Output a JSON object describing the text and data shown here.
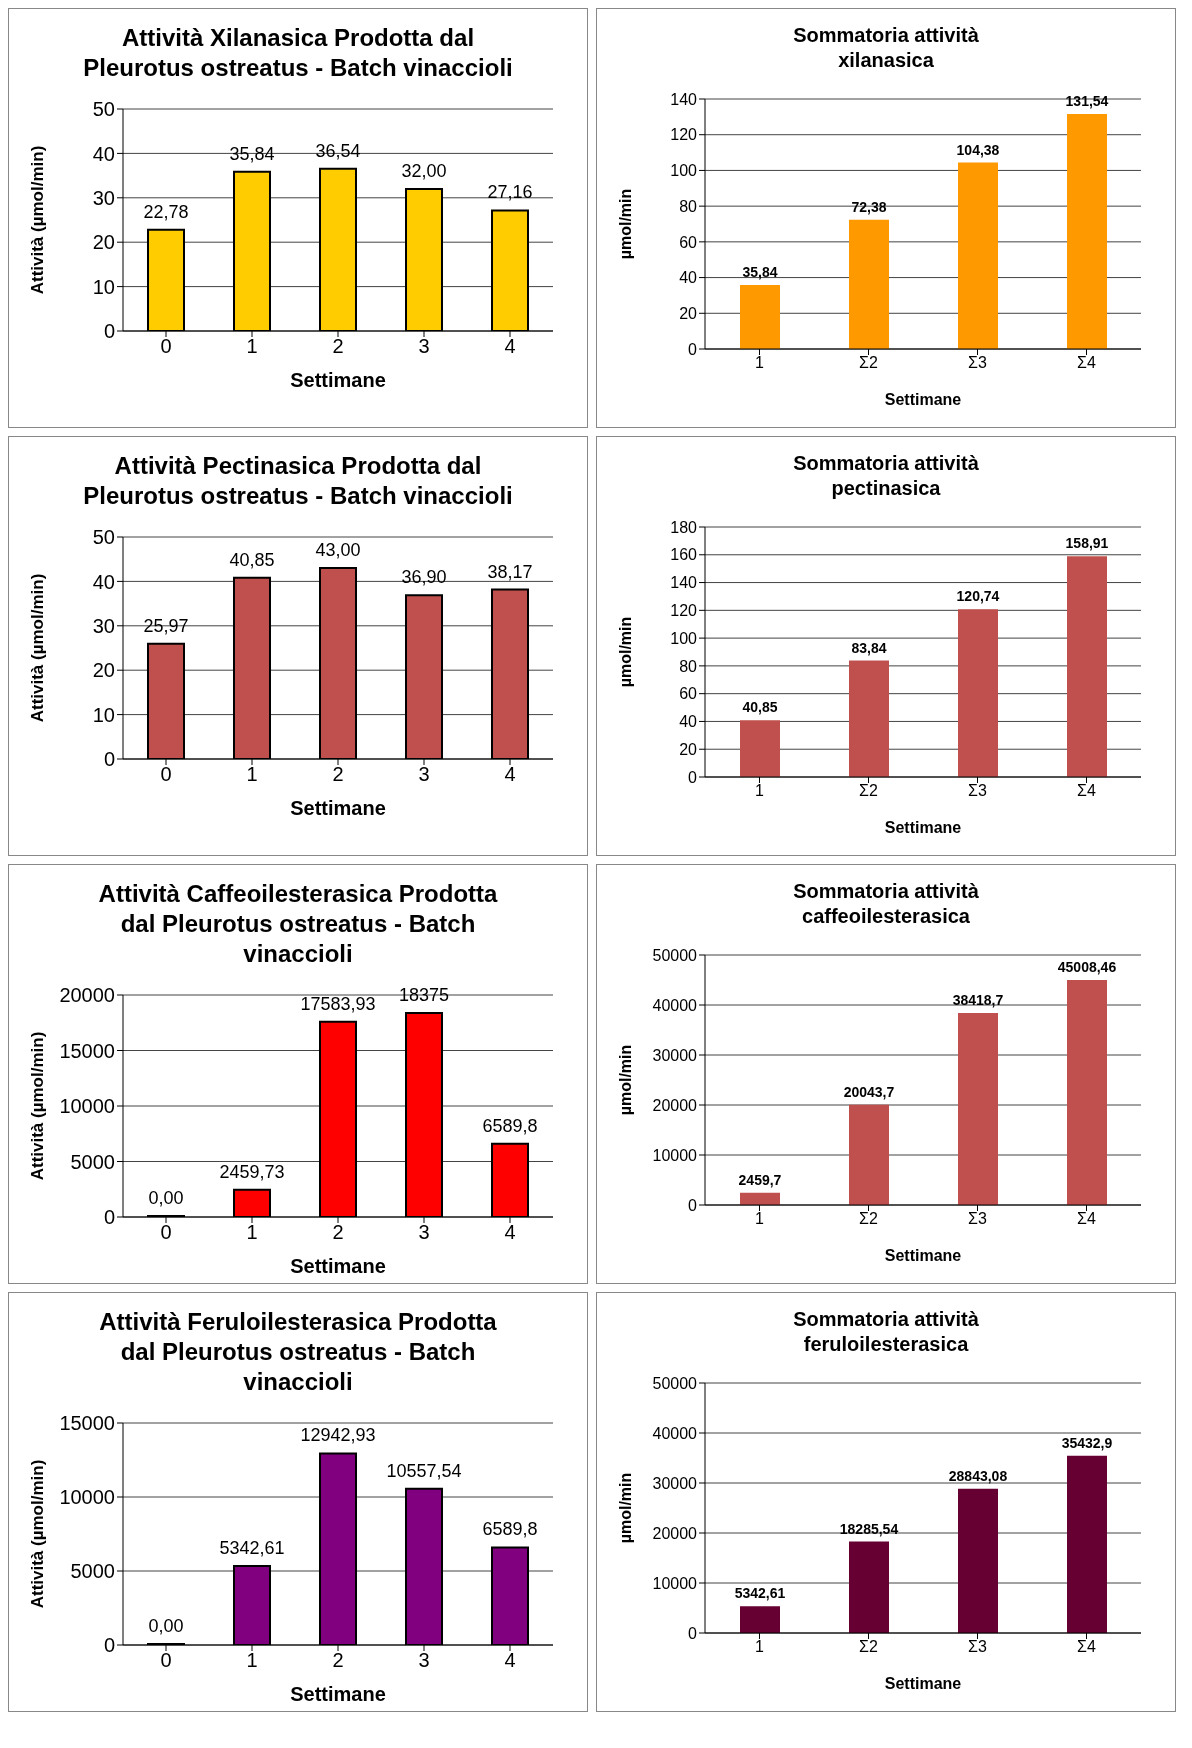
{
  "chart_data": [
    {
      "type": "bar",
      "title": "Attività Xilanasica Prodotta dal Pleurotus ostreatus - Batch vinaccioli",
      "xlabel": "Settimane",
      "ylabel": "Attività (µmol/min)",
      "categories": [
        "0",
        "1",
        "2",
        "3",
        "4"
      ],
      "values": [
        22.78,
        35.84,
        36.54,
        32.0,
        27.16
      ],
      "value_labels": [
        "22,78",
        "35,84",
        "36,54",
        "32,00",
        "27,16"
      ],
      "color": "#ffcc00",
      "ylim": [
        0,
        50
      ],
      "yticks": [
        0,
        10,
        20,
        30,
        40,
        50
      ],
      "grid": "y",
      "legend": false
    },
    {
      "type": "bar",
      "title": "Sommatoria  attività xilanasica",
      "xlabel": "Settimane",
      "ylabel": "µmol/min",
      "categories": [
        "1",
        "Σ2",
        "Σ3",
        "Σ4"
      ],
      "values": [
        35.84,
        72.38,
        104.38,
        131.54
      ],
      "value_labels": [
        "35,84",
        "72,38",
        "104,38",
        "131,54"
      ],
      "color": "#ff9900",
      "ylim": [
        0,
        140
      ],
      "yticks": [
        0,
        20,
        40,
        60,
        80,
        100,
        120,
        140
      ],
      "grid": "y",
      "legend": false
    },
    {
      "type": "bar",
      "title": "Attività Pectinasica Prodotta dal Pleurotus ostreatus - Batch vinaccioli",
      "xlabel": "Settimane",
      "ylabel": "Attività (µmol/min)",
      "categories": [
        "0",
        "1",
        "2",
        "3",
        "4"
      ],
      "values": [
        25.97,
        40.85,
        43.0,
        36.9,
        38.17
      ],
      "value_labels": [
        "25,97",
        "40,85",
        "43,00",
        "36,90",
        "38,17"
      ],
      "color": "#c0504d",
      "ylim": [
        0,
        50
      ],
      "yticks": [
        0,
        10,
        20,
        30,
        40,
        50
      ],
      "grid": "y",
      "legend": false
    },
    {
      "type": "bar",
      "title": "Sommatoria  attività pectinasica",
      "xlabel": "Settimane",
      "ylabel": "µmol/min",
      "categories": [
        "1",
        "Σ2",
        "Σ3",
        "Σ4"
      ],
      "values": [
        40.85,
        83.84,
        120.74,
        158.91
      ],
      "value_labels": [
        "40,85",
        "83,84",
        "120,74",
        "158,91"
      ],
      "color": "#c0504d",
      "ylim": [
        0,
        180
      ],
      "yticks": [
        0,
        20,
        40,
        60,
        80,
        100,
        120,
        140,
        160,
        180
      ],
      "grid": "y",
      "legend": false
    },
    {
      "type": "bar",
      "title": "Attività Caffeoilesterasica Prodotta dal Pleurotus ostreatus - Batch vinaccioli",
      "xlabel": "Settimane",
      "ylabel": "Attività (µmol/min)",
      "categories": [
        "0",
        "1",
        "2",
        "3",
        "4"
      ],
      "values": [
        0,
        2459.73,
        17583.93,
        18375,
        6589.8
      ],
      "value_labels": [
        "0,00",
        "2459,73",
        "17583,93",
        "18375",
        "6589,8"
      ],
      "color": "#ff0000",
      "ylim": [
        0,
        20000
      ],
      "yticks": [
        0,
        5000,
        10000,
        15000,
        20000
      ],
      "grid": "y",
      "legend": false
    },
    {
      "type": "bar",
      "title": "Sommatoria  attività caffeoilesterasica",
      "xlabel": "Settimane",
      "ylabel": "µmol/min",
      "categories": [
        "1",
        "Σ2",
        "Σ3",
        "Σ4"
      ],
      "values": [
        2459.7,
        20043.7,
        38418.7,
        45008.46
      ],
      "value_labels": [
        "2459,7",
        "20043,7",
        "38418,7",
        "45008,46"
      ],
      "color": "#c0504d",
      "ylim": [
        0,
        50000
      ],
      "yticks": [
        0,
        10000,
        20000,
        30000,
        40000,
        50000
      ],
      "grid": "y",
      "legend": false
    },
    {
      "type": "bar",
      "title": "Attività Feruloilesterasica Prodotta dal Pleurotus ostreatus - Batch vinaccioli",
      "xlabel": "Settimane",
      "ylabel": "Attività (µmol/min)",
      "categories": [
        "0",
        "1",
        "2",
        "3",
        "4"
      ],
      "values": [
        0,
        5342.61,
        12942.93,
        10557.54,
        6589.8
      ],
      "value_labels": [
        "0,00",
        "5342,61",
        "12942,93",
        "10557,54",
        "6589,8"
      ],
      "color": "#800080",
      "ylim": [
        0,
        15000
      ],
      "yticks": [
        0,
        5000,
        10000,
        15000
      ],
      "grid": "y",
      "legend": false
    },
    {
      "type": "bar",
      "title": "Sommatoria  attività feruloilesterasica",
      "xlabel": "Settimane",
      "ylabel": "µmol/min",
      "categories": [
        "1",
        "Σ2",
        "Σ3",
        "Σ4"
      ],
      "values": [
        5342.61,
        18285.54,
        28843.08,
        35432.9
      ],
      "value_labels": [
        "5342,61",
        "18285,54",
        "28843,08",
        "35432,9"
      ],
      "color": "#660033",
      "ylim": [
        0,
        50000
      ],
      "yticks": [
        0,
        10000,
        20000,
        30000,
        40000,
        50000
      ],
      "grid": "y",
      "legend": false
    }
  ]
}
